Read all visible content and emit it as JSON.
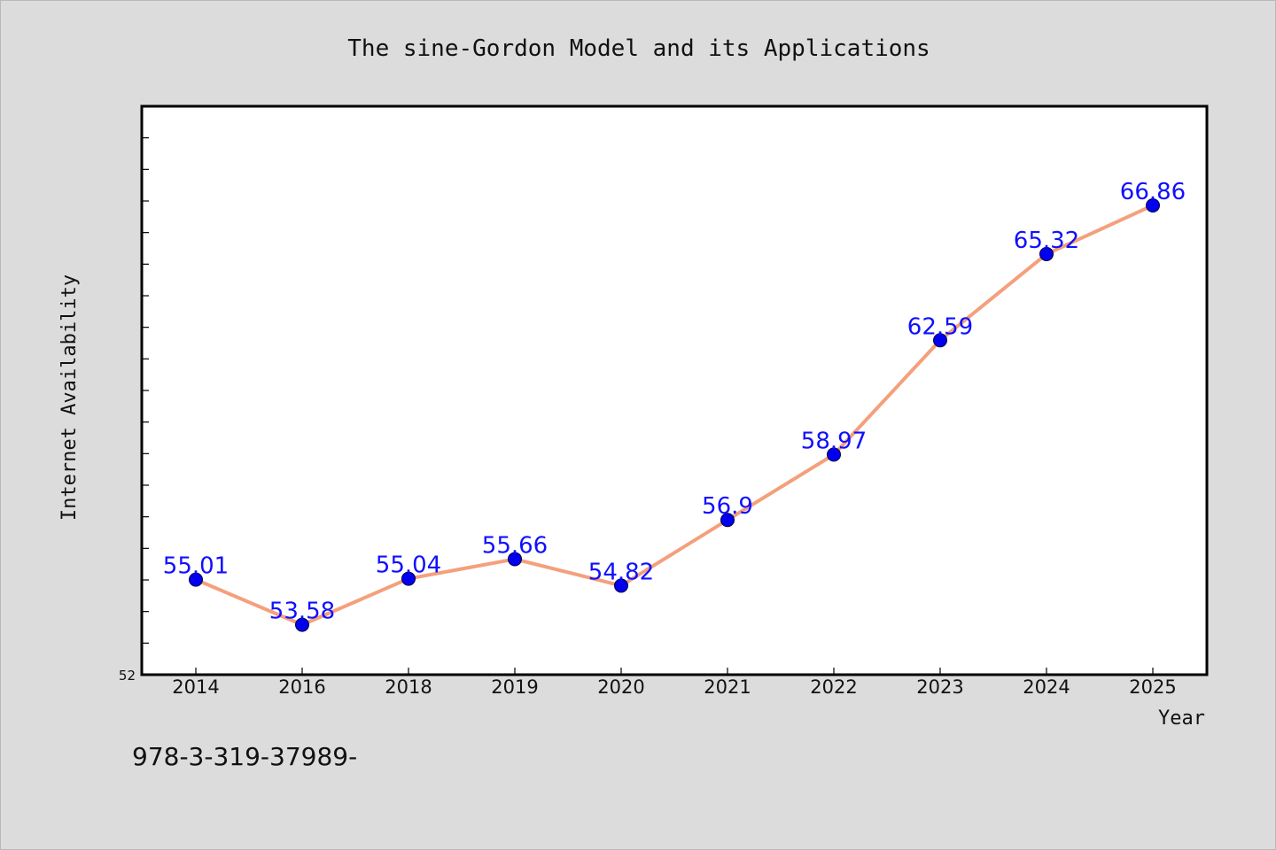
{
  "chart_data": {
    "type": "line",
    "title": "The sine-Gordon Model and its Applications",
    "xlabel": "Year",
    "ylabel": "Internet Availability",
    "categories": [
      "2014",
      "2016",
      "2018",
      "2019",
      "2020",
      "2021",
      "2022",
      "2023",
      "2024",
      "2025"
    ],
    "series": [
      {
        "values": [
          55.01,
          53.58,
          55.04,
          55.66,
          54.82,
          56.9,
          58.97,
          62.59,
          65.32,
          66.86
        ],
        "labels": [
          "55.01",
          "53.58",
          "55.04",
          "55.66",
          "54.82",
          "56.9",
          "58.97",
          "62.59",
          "65.32",
          "66.86"
        ],
        "line_color": "#f4a07c",
        "marker_color": "#0000ee"
      }
    ],
    "ylim": [
      52,
      70
    ],
    "y_tick_labels": [
      "52"
    ],
    "grid": false,
    "legend": "none"
  },
  "footer": {
    "text": "978-3-319-37989-"
  },
  "colors": {
    "background": "#dcdcdc",
    "plot_background": "#ffffff",
    "axis": "#000000",
    "data_label": "#1010ff"
  }
}
